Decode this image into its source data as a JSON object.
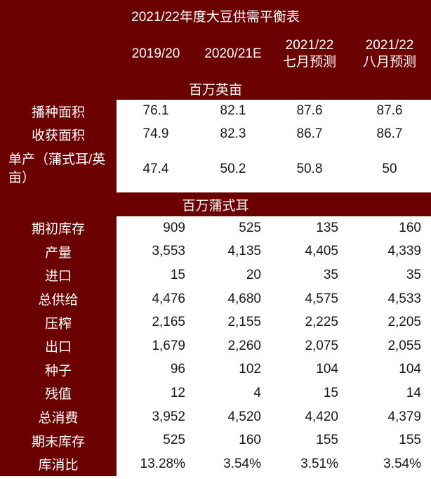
{
  "title": "2021/22年度大豆供需平衡表",
  "columns": [
    [
      "2019/20"
    ],
    [
      "2020/21E"
    ],
    [
      "2021/22",
      "七月预测"
    ],
    [
      "2021/22",
      "八月预测"
    ]
  ],
  "section_area": "百万英亩",
  "section_volume": "百万蒲式耳",
  "area_rows": [
    {
      "label": "播种面积",
      "values": [
        "76.1",
        "82.1",
        "87.6",
        "87.6"
      ]
    },
    {
      "label": "收获面积",
      "values": [
        "74.9",
        "82.3",
        "86.7",
        "86.7"
      ]
    },
    {
      "label": "单产（蒲式耳/英亩）",
      "values": [
        "47.4",
        "50.2",
        "50.8",
        "50"
      ]
    }
  ],
  "volume_rows": [
    {
      "label": "期初库存",
      "values": [
        "909",
        "525",
        "135",
        "160"
      ]
    },
    {
      "label": "产量",
      "values": [
        "3,553",
        "4,135",
        "4,405",
        "4,339"
      ]
    },
    {
      "label": "进口",
      "values": [
        "15",
        "20",
        "35",
        "35"
      ]
    },
    {
      "label": "总供给",
      "values": [
        "4,476",
        "4,680",
        "4,575",
        "4,533"
      ]
    },
    {
      "label": "压榨",
      "values": [
        "2,165",
        "2,155",
        "2,225",
        "2,205"
      ]
    },
    {
      "label": "出口",
      "values": [
        "1,679",
        "2,260",
        "2,075",
        "2,055"
      ]
    },
    {
      "label": "种子",
      "values": [
        "96",
        "102",
        "104",
        "104"
      ]
    },
    {
      "label": "残值",
      "values": [
        "12",
        "4",
        "15",
        "14"
      ]
    },
    {
      "label": "总消费",
      "values": [
        "3,952",
        "4,520",
        "4,420",
        "4,379"
      ]
    },
    {
      "label": "期末库存",
      "values": [
        "525",
        "160",
        "155",
        "155"
      ]
    },
    {
      "label": "库消比",
      "values": [
        "13.28%",
        "3.54%",
        "3.51%",
        "3.54%"
      ]
    }
  ]
}
